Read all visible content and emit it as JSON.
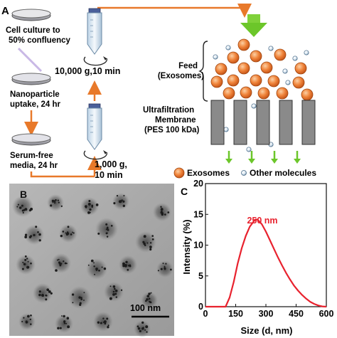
{
  "panel_a": {
    "label": "A",
    "steps": [
      {
        "line1": "Cell culture to",
        "line2": "50% confluency"
      },
      {
        "line1": "Nanoparticle",
        "line2": "uptake, 24 hr"
      },
      {
        "line1": "Serum-free",
        "line2": "media, 24 hr"
      }
    ],
    "centrifuge_1": "10,000 g,10 min",
    "centrifuge_2": {
      "line1": "1,000 g,",
      "line2": "10 min"
    },
    "feed": {
      "line1": "Feed",
      "line2": "(Exosomes)"
    },
    "membrane": {
      "line1": "Ultrafiltration",
      "line2": "Membrane",
      "line3": "(PES 100 kDa)"
    },
    "legend": {
      "exosomes": "Exosomes",
      "other": "Other molecules"
    }
  },
  "panel_b": {
    "label": "B",
    "scale_bar": "100 nm"
  },
  "panel_c": {
    "label": "C",
    "peak_label": "250 nm",
    "chart_data": {
      "type": "line",
      "title": "",
      "xlabel": "Size (d, nm)",
      "ylabel": "Intensity (%)",
      "xlim": [
        0,
        600
      ],
      "ylim": [
        0,
        20
      ],
      "x_ticks": [
        "0",
        "150",
        "300",
        "450",
        "600"
      ],
      "y_ticks": [
        "0",
        "5",
        "10",
        "15",
        "20"
      ],
      "grid": false,
      "series": [
        {
          "color": "#e8222e",
          "x": [
            0,
            100,
            120,
            140,
            160,
            180,
            200,
            220,
            240,
            250,
            260,
            280,
            300,
            320,
            340,
            360,
            380,
            400,
            420,
            440,
            460,
            480,
            500,
            520,
            540,
            560,
            580,
            600
          ],
          "y": [
            0,
            0,
            1.5,
            4.0,
            7.0,
            9.5,
            11.5,
            13.0,
            13.9,
            14.2,
            14.1,
            13.4,
            12.2,
            10.8,
            9.4,
            8.0,
            6.7,
            5.5,
            4.4,
            3.4,
            2.6,
            1.9,
            1.3,
            0.8,
            0.45,
            0.2,
            0.05,
            0
          ]
        }
      ]
    }
  }
}
